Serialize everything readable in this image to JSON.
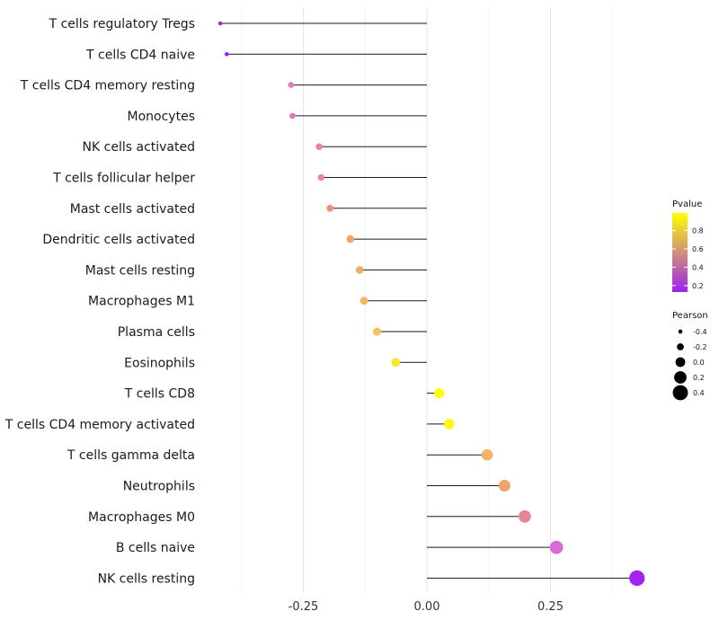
{
  "chart_data": {
    "type": "lollipop",
    "orientation": "horizontal",
    "xlim": [
      -0.42,
      0.46
    ],
    "xticks": [
      -0.25,
      0.0,
      0.25
    ],
    "xtick_labels": [
      "-0.25",
      "0.00",
      "0.25"
    ],
    "grid": true,
    "categories": [
      "T cells regulatory  Tregs",
      "T cells CD4 naive",
      "T cells CD4 memory resting",
      "Monocytes",
      "NK cells activated",
      "T cells follicular helper",
      "Mast cells activated",
      "Dendritic cells activated",
      "Mast cells resting",
      "Macrophages M1",
      "Plasma cells",
      "Eosinophils",
      "T cells CD8",
      "T cells CD4 memory activated",
      "T cells gamma delta",
      "Neutrophils",
      "Macrophages M0",
      "B cells naive",
      "NK cells resting"
    ],
    "pearson": [
      -0.418,
      -0.405,
      -0.275,
      -0.272,
      -0.218,
      -0.214,
      -0.196,
      -0.155,
      -0.136,
      -0.127,
      -0.101,
      -0.063,
      0.025,
      0.045,
      0.122,
      0.157,
      0.198,
      0.262,
      0.425
    ],
    "pvalue": [
      0.12,
      0.13,
      0.48,
      0.48,
      0.55,
      0.56,
      0.62,
      0.7,
      0.74,
      0.76,
      0.82,
      0.92,
      0.99,
      0.97,
      0.76,
      0.7,
      0.55,
      0.4,
      0.14
    ],
    "legend": {
      "pvalue": {
        "title": "Pvalue",
        "ticks": [
          0.2,
          0.4,
          0.6,
          0.8
        ],
        "labels": [
          "0.2",
          "0.4",
          "0.6",
          "0.8"
        ],
        "range": [
          0.13,
          0.99
        ],
        "colors": [
          "#a020f0",
          "#ffff00"
        ]
      },
      "pearson": {
        "title": "Pearson",
        "values": [
          -0.4,
          -0.2,
          0.0,
          0.2,
          0.4
        ],
        "labels": [
          "-0.4",
          "-0.2",
          "0.0",
          "0.2",
          "0.4"
        ]
      }
    }
  }
}
